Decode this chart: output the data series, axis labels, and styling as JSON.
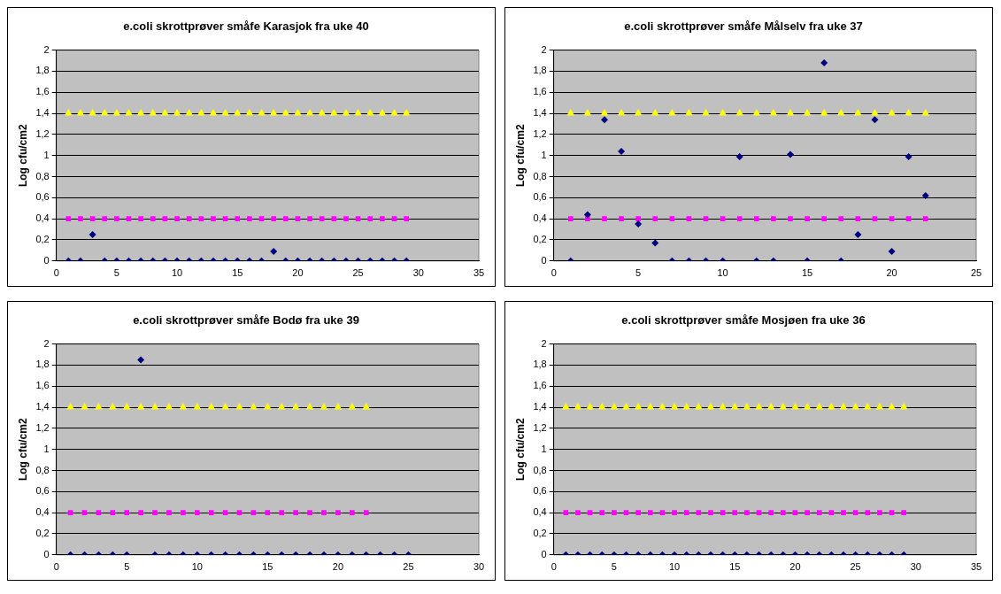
{
  "chart_data": [
    {
      "type": "scatter",
      "title": "e.coli skrottprøver småfe Karasjok fra uke 40",
      "ylabel": "Log cfu/cm2",
      "xlim": [
        0,
        35
      ],
      "xticks": [
        0,
        5,
        10,
        15,
        20,
        25,
        30,
        35
      ],
      "ylim": [
        0,
        2
      ],
      "yticks": [
        0,
        {
          "value": 0.2,
          "label": "0,2"
        },
        {
          "value": 0.4,
          "label": "0,4"
        },
        {
          "value": 0.6,
          "label": "0,6"
        },
        {
          "value": 0.8,
          "label": "0,8"
        },
        1,
        {
          "value": 1.2,
          "label": "1,2"
        },
        {
          "value": 1.4,
          "label": "1,4"
        },
        {
          "value": 1.6,
          "label": "1,6"
        },
        {
          "value": 1.8,
          "label": "1,8"
        },
        2
      ],
      "grid": "y",
      "legend": false,
      "series": [
        {
          "color": "#000080",
          "marker": "diamond",
          "x": [
            1,
            2,
            3,
            4,
            5,
            6,
            7,
            8,
            9,
            10,
            11,
            12,
            13,
            14,
            15,
            16,
            17,
            18,
            19,
            20,
            21,
            22,
            23,
            24,
            25,
            26,
            27,
            28,
            29
          ],
          "values": [
            0,
            0,
            0.25,
            0,
            0,
            0,
            0,
            0,
            0,
            0,
            0,
            0,
            0,
            0,
            0,
            0,
            0,
            0.09,
            0,
            0,
            0,
            0,
            0,
            0,
            0,
            0,
            0,
            0,
            0
          ]
        },
        {
          "color": "#ff00ff",
          "marker": "square",
          "x": [
            1,
            2,
            3,
            4,
            5,
            6,
            7,
            8,
            9,
            10,
            11,
            12,
            13,
            14,
            15,
            16,
            17,
            18,
            19,
            20,
            21,
            22,
            23,
            24,
            25,
            26,
            27,
            28,
            29
          ],
          "values": [
            0.4,
            0.4,
            0.4,
            0.4,
            0.4,
            0.4,
            0.4,
            0.4,
            0.4,
            0.4,
            0.4,
            0.4,
            0.4,
            0.4,
            0.4,
            0.4,
            0.4,
            0.4,
            0.4,
            0.4,
            0.4,
            0.4,
            0.4,
            0.4,
            0.4,
            0.4,
            0.4,
            0.4,
            0.4
          ]
        },
        {
          "color": "#ffff00",
          "marker": "triangle",
          "x": [
            1,
            2,
            3,
            4,
            5,
            6,
            7,
            8,
            9,
            10,
            11,
            12,
            13,
            14,
            15,
            16,
            17,
            18,
            19,
            20,
            21,
            22,
            23,
            24,
            25,
            26,
            27,
            28,
            29
          ],
          "values": [
            1.4,
            1.4,
            1.4,
            1.4,
            1.4,
            1.4,
            1.4,
            1.4,
            1.4,
            1.4,
            1.4,
            1.4,
            1.4,
            1.4,
            1.4,
            1.4,
            1.4,
            1.4,
            1.4,
            1.4,
            1.4,
            1.4,
            1.4,
            1.4,
            1.4,
            1.4,
            1.4,
            1.4,
            1.4
          ]
        }
      ]
    },
    {
      "type": "scatter",
      "title": "e.coli skrottprøver småfe Målselv fra uke 37",
      "ylabel": "Log cfu/cm2",
      "xlim": [
        0,
        25
      ],
      "xticks": [
        0,
        5,
        10,
        15,
        20,
        25
      ],
      "ylim": [
        0,
        2
      ],
      "yticks": [
        0,
        {
          "value": 0.2,
          "label": "0,2"
        },
        {
          "value": 0.4,
          "label": "0,4"
        },
        {
          "value": 0.6,
          "label": "0,6"
        },
        {
          "value": 0.8,
          "label": "0,8"
        },
        1,
        {
          "value": 1.2,
          "label": "1,2"
        },
        {
          "value": 1.4,
          "label": "1,4"
        },
        {
          "value": 1.6,
          "label": "1,6"
        },
        {
          "value": 1.8,
          "label": "1,8"
        },
        2
      ],
      "grid": "y",
      "legend": false,
      "series": [
        {
          "color": "#000080",
          "marker": "diamond",
          "x": [
            1,
            2,
            3,
            4,
            5,
            6,
            7,
            8,
            9,
            10,
            11,
            12,
            13,
            14,
            15,
            16,
            17,
            18,
            19,
            20,
            21,
            22
          ],
          "values": [
            0,
            0.44,
            1.34,
            1.04,
            0.35,
            0.17,
            0,
            0,
            0,
            0,
            0.99,
            0,
            0,
            1.01,
            0,
            1.88,
            0,
            0.25,
            1.34,
            0.09,
            0.99,
            0.62
          ]
        },
        {
          "color": "#ff00ff",
          "marker": "square",
          "x": [
            1,
            2,
            3,
            4,
            5,
            6,
            7,
            8,
            9,
            10,
            11,
            12,
            13,
            14,
            15,
            16,
            17,
            18,
            19,
            20,
            21,
            22
          ],
          "values": [
            0.4,
            0.4,
            0.4,
            0.4,
            0.4,
            0.4,
            0.4,
            0.4,
            0.4,
            0.4,
            0.4,
            0.4,
            0.4,
            0.4,
            0.4,
            0.4,
            0.4,
            0.4,
            0.4,
            0.4,
            0.4,
            0.4
          ]
        },
        {
          "color": "#ffff00",
          "marker": "triangle",
          "x": [
            1,
            2,
            3,
            4,
            5,
            6,
            7,
            8,
            9,
            10,
            11,
            12,
            13,
            14,
            15,
            16,
            17,
            18,
            19,
            20,
            21,
            22
          ],
          "values": [
            1.4,
            1.4,
            1.4,
            1.4,
            1.4,
            1.4,
            1.4,
            1.4,
            1.4,
            1.4,
            1.4,
            1.4,
            1.4,
            1.4,
            1.4,
            1.4,
            1.4,
            1.4,
            1.4,
            1.4,
            1.4,
            1.4
          ]
        }
      ]
    },
    {
      "type": "scatter",
      "title": "e.coli skrottprøver småfe Bodø fra uke 39",
      "ylabel": "Log cfu/cm2",
      "xlim": [
        0,
        30
      ],
      "xticks": [
        0,
        5,
        10,
        15,
        20,
        25,
        30
      ],
      "ylim": [
        0,
        2
      ],
      "yticks": [
        0,
        {
          "value": 0.2,
          "label": "0,2"
        },
        {
          "value": 0.4,
          "label": "0,4"
        },
        {
          "value": 0.6,
          "label": "0,6"
        },
        {
          "value": 0.8,
          "label": "0,8"
        },
        1,
        {
          "value": 1.2,
          "label": "1,2"
        },
        {
          "value": 1.4,
          "label": "1,4"
        },
        {
          "value": 1.6,
          "label": "1,6"
        },
        {
          "value": 1.8,
          "label": "1,8"
        },
        2
      ],
      "grid": "y",
      "legend": false,
      "series": [
        {
          "color": "#000080",
          "marker": "diamond",
          "x": [
            1,
            2,
            3,
            4,
            5,
            6,
            7,
            8,
            9,
            10,
            11,
            12,
            13,
            14,
            15,
            16,
            17,
            18,
            19,
            20,
            21,
            22,
            23,
            24,
            25
          ],
          "values": [
            0,
            0,
            0,
            0,
            0,
            1.85,
            0,
            0,
            0,
            0,
            0,
            0,
            0,
            0,
            0,
            0,
            0,
            0,
            0,
            0,
            0,
            0,
            0,
            0,
            0
          ]
        },
        {
          "color": "#ff00ff",
          "marker": "square",
          "x": [
            1,
            2,
            3,
            4,
            5,
            6,
            7,
            8,
            9,
            10,
            11,
            12,
            13,
            14,
            15,
            16,
            17,
            18,
            19,
            20,
            21,
            22
          ],
          "values": [
            0.4,
            0.4,
            0.4,
            0.4,
            0.4,
            0.4,
            0.4,
            0.4,
            0.4,
            0.4,
            0.4,
            0.4,
            0.4,
            0.4,
            0.4,
            0.4,
            0.4,
            0.4,
            0.4,
            0.4,
            0.4,
            0.4
          ]
        },
        {
          "color": "#ffff00",
          "marker": "triangle",
          "x": [
            1,
            2,
            3,
            4,
            5,
            6,
            7,
            8,
            9,
            10,
            11,
            12,
            13,
            14,
            15,
            16,
            17,
            18,
            19,
            20,
            21,
            22
          ],
          "values": [
            1.4,
            1.4,
            1.4,
            1.4,
            1.4,
            1.4,
            1.4,
            1.4,
            1.4,
            1.4,
            1.4,
            1.4,
            1.4,
            1.4,
            1.4,
            1.4,
            1.4,
            1.4,
            1.4,
            1.4,
            1.4,
            1.4
          ]
        }
      ]
    },
    {
      "type": "scatter",
      "title": "e.coli skrottprøver småfe Mosjøen fra uke 36",
      "ylabel": "Log cfu/cm2",
      "xlim": [
        0,
        35
      ],
      "xticks": [
        0,
        5,
        10,
        15,
        20,
        25,
        30,
        35
      ],
      "ylim": [
        0,
        2
      ],
      "yticks": [
        0,
        {
          "value": 0.2,
          "label": "0,2"
        },
        {
          "value": 0.4,
          "label": "0,4"
        },
        {
          "value": 0.6,
          "label": "0,6"
        },
        {
          "value": 0.8,
          "label": "0,8"
        },
        1,
        {
          "value": 1.2,
          "label": "1,2"
        },
        {
          "value": 1.4,
          "label": "1,4"
        },
        {
          "value": 1.6,
          "label": "1,6"
        },
        {
          "value": 1.8,
          "label": "1,8"
        },
        2
      ],
      "grid": "y",
      "legend": false,
      "series": [
        {
          "color": "#000080",
          "marker": "diamond",
          "x": [
            1,
            2,
            3,
            4,
            5,
            6,
            7,
            8,
            9,
            10,
            11,
            12,
            13,
            14,
            15,
            16,
            17,
            18,
            19,
            20,
            21,
            22,
            23,
            24,
            25,
            26,
            27,
            28,
            29
          ],
          "values": [
            0,
            0,
            0,
            0,
            0,
            0,
            0,
            0,
            0,
            0,
            0,
            0,
            0,
            0,
            0,
            0,
            0,
            0,
            0,
            0,
            0,
            0,
            0,
            0,
            0,
            0,
            0,
            0,
            0
          ]
        },
        {
          "color": "#ff00ff",
          "marker": "square",
          "x": [
            1,
            2,
            3,
            4,
            5,
            6,
            7,
            8,
            9,
            10,
            11,
            12,
            13,
            14,
            15,
            16,
            17,
            18,
            19,
            20,
            21,
            22,
            23,
            24,
            25,
            26,
            27,
            28,
            29
          ],
          "values": [
            0.4,
            0.4,
            0.4,
            0.4,
            0.4,
            0.4,
            0.4,
            0.4,
            0.4,
            0.4,
            0.4,
            0.4,
            0.4,
            0.4,
            0.4,
            0.4,
            0.4,
            0.4,
            0.4,
            0.4,
            0.4,
            0.4,
            0.4,
            0.4,
            0.4,
            0.4,
            0.4,
            0.4,
            0.4
          ]
        },
        {
          "color": "#ffff00",
          "marker": "triangle",
          "x": [
            1,
            2,
            3,
            4,
            5,
            6,
            7,
            8,
            9,
            10,
            11,
            12,
            13,
            14,
            15,
            16,
            17,
            18,
            19,
            20,
            21,
            22,
            23,
            24,
            25,
            26,
            27,
            28,
            29
          ],
          "values": [
            1.4,
            1.4,
            1.4,
            1.4,
            1.4,
            1.4,
            1.4,
            1.4,
            1.4,
            1.4,
            1.4,
            1.4,
            1.4,
            1.4,
            1.4,
            1.4,
            1.4,
            1.4,
            1.4,
            1.4,
            1.4,
            1.4,
            1.4,
            1.4,
            1.4,
            1.4,
            1.4,
            1.4,
            1.4
          ]
        }
      ]
    }
  ]
}
